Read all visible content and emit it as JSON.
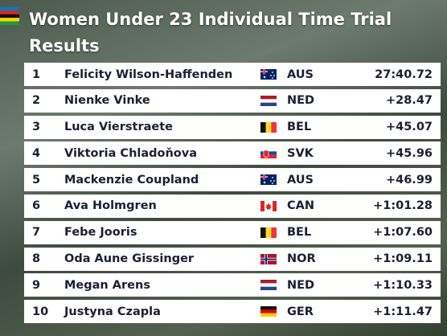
{
  "header": {
    "title_lines": [
      "Women Under 23 Individual Time Trial",
      "Results"
    ]
  },
  "table": {
    "rows": [
      [
        1,
        "Felicity Wilson-Haffenden",
        "AUS",
        "27:40.72"
      ],
      [
        2,
        "Nienke Vinke",
        "NED",
        "+28.47"
      ],
      [
        3,
        "Luca Vierstraete",
        "BEL",
        "+45.07"
      ],
      [
        4,
        "Viktoria Chladoňova",
        "SVK",
        "+45.96"
      ],
      [
        5,
        "Mackenzie Coupland",
        "AUS",
        "+46.99"
      ],
      [
        6,
        "Ava Holmgren",
        "CAN",
        "+1:01.28"
      ],
      [
        7,
        "Febe Jooris",
        "BEL",
        "+1:07.60"
      ],
      [
        8,
        "Oda Aune Gissinger",
        "NOR",
        "+1:09.11"
      ],
      [
        9,
        "Megan Arens",
        "NED",
        "+1:10.33"
      ],
      [
        10,
        "Justyna Czapla",
        "GER",
        "+1:11.47"
      ]
    ]
  }
}
